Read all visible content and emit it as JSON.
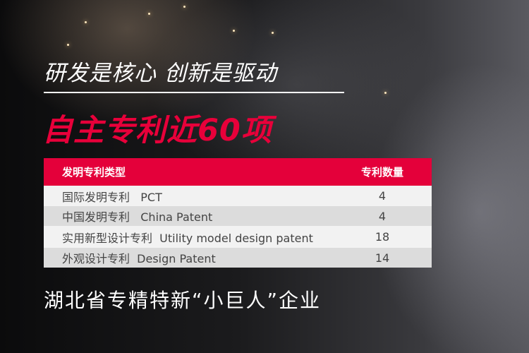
{
  "slogan": "研发是核心 创新是驱动",
  "headline": "自主专利近60项",
  "table": {
    "header": {
      "type": "发明专利类型",
      "count": "专利数量"
    },
    "rows": [
      {
        "type": "国际发明专利   PCT",
        "count": "4"
      },
      {
        "type": "中国发明专利   China Patent",
        "count": "4"
      },
      {
        "type": "实用新型设计专利  Utility model design patent",
        "count": "18"
      },
      {
        "type": "外观设计专利  Design Patent",
        "count": "14"
      }
    ]
  },
  "footer": "湖北省专精特新“小巨人”企业",
  "colors": {
    "accent": "#e4003a",
    "row_light": "#f2f2f2",
    "row_dark": "#dcdcdc"
  }
}
